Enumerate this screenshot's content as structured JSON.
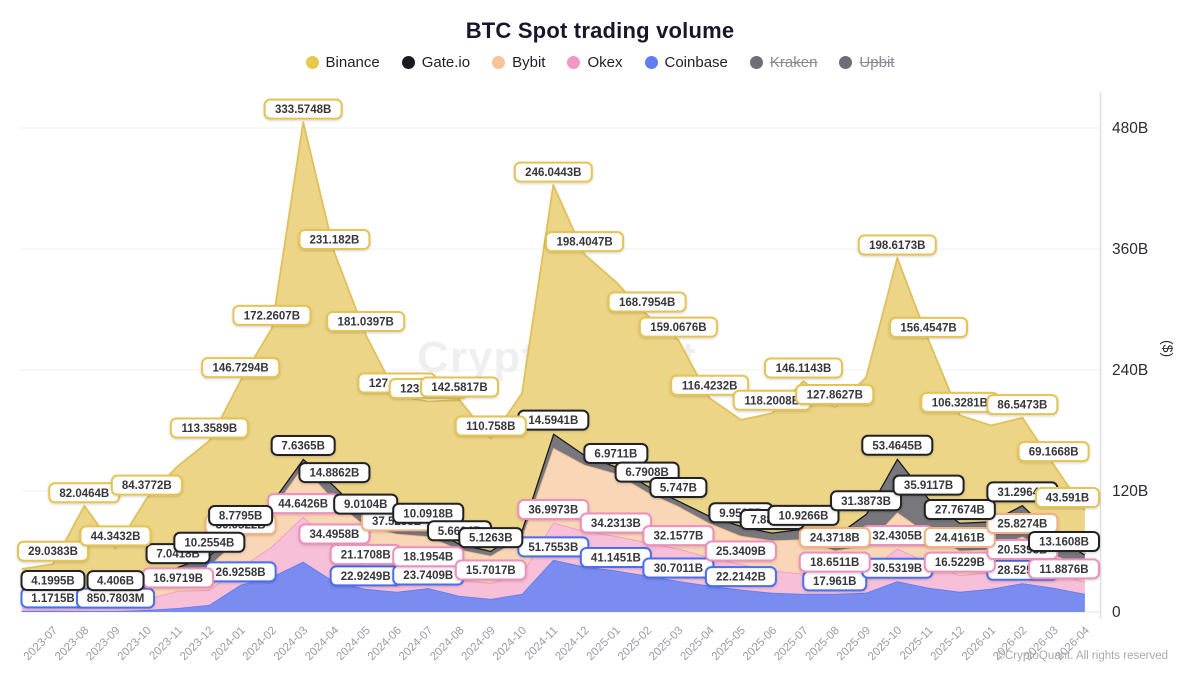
{
  "title": "BTC Spot trading volume",
  "watermark": "CryptoQuant",
  "copyright": "©CryptoQuant. All rights reserved",
  "legend": [
    {
      "label": "Binance",
      "color": "#e6c84d",
      "disabled": false
    },
    {
      "label": "Gate.io",
      "color": "#1a1a1f",
      "disabled": false
    },
    {
      "label": "Bybit",
      "color": "#f6c39b",
      "disabled": false
    },
    {
      "label": "Okex",
      "color": "#f398c3",
      "disabled": false
    },
    {
      "label": "Coinbase",
      "color": "#5f7df2",
      "disabled": false
    },
    {
      "label": "Kraken",
      "color": "#6e6e76",
      "disabled": true
    },
    {
      "label": "Upbit",
      "color": "#6e6e76",
      "disabled": true
    }
  ],
  "y_axis": {
    "unit": "($)",
    "ticks": [
      "0",
      "120B",
      "240B",
      "360B",
      "480B"
    ],
    "tick_values": [
      0,
      120,
      240,
      360,
      480
    ]
  },
  "chart_data": {
    "type": "area",
    "stacked": true,
    "grid": true,
    "legend_position": "top",
    "ylim_billions": [
      0,
      480
    ],
    "x": [
      "2023-07",
      "2023-08",
      "2023-09",
      "2023-10",
      "2023-11",
      "2023-12",
      "2024-01",
      "2024-02",
      "2024-03",
      "2024-04",
      "2024-05",
      "2024-06",
      "2024-07",
      "2024-08",
      "2024-09",
      "2024-10",
      "2024-11",
      "2024-12",
      "2025-01",
      "2025-02",
      "2025-03",
      "2025-04",
      "2025-05",
      "2025-06",
      "2025-07",
      "2025-08",
      "2025-09",
      "2025-10",
      "2025-11",
      "2025-12",
      "2026-01",
      "2026-02",
      "2026-03",
      "2026-04"
    ],
    "series": [
      {
        "name": "Coinbase",
        "fill": "#7a8cf0",
        "line": "#5f7df2",
        "label_border": "#4a6ef0",
        "values_billions": [
          1.1715,
          1.0,
          0.8508,
          2,
          4,
          7,
          26.9258,
          35,
          50,
          30,
          22.9249,
          20,
          23.7409,
          16,
          13,
          18,
          51.7553,
          45,
          41.1451,
          36,
          30.7011,
          26,
          22.2142,
          19,
          18,
          17.961,
          19,
          30.5319,
          24,
          20,
          23,
          28.5252,
          24,
          18
        ],
        "labels": {
          "0": "1.1715B",
          "2": "850.7803M",
          "6": "26.9258B",
          "10": "22.9249B",
          "12": "23.7409B",
          "16": "51.7553B",
          "18": "41.1451B",
          "20": "30.7011B",
          "22": "22.2142B",
          "25": "17.961B",
          "27": "30.5319B",
          "31": "28.5252B"
        }
      },
      {
        "name": "Okex",
        "fill": "#f8c0d8",
        "line": "#f298c4",
        "label_border": "#ee8fbe",
        "values_billions": [
          7,
          10,
          7,
          11,
          16.9719,
          15,
          17,
          30,
          44.6426,
          34.4958,
          21.1708,
          20,
          18.1954,
          16,
          15.7017,
          20,
          36.9973,
          35,
          34.2313,
          33,
          32.1577,
          28,
          25.3409,
          22,
          20,
          18.6511,
          20,
          32.4305,
          25,
          16.5229,
          17,
          20.5398,
          15,
          11.8876
        ],
        "labels": {
          "4": "16.9719B",
          "8": "44.6426B",
          "9": "34.4958B",
          "10": "21.1708B",
          "12": "18.1954B",
          "14": "15.7017B",
          "16": "36.9973B",
          "18": "34.2313B",
          "20": "32.1577B",
          "22": "25.3409B",
          "25": "18.6511B",
          "27": "32.4305B",
          "29": "16.5229B",
          "31": "20.5398B",
          "33": "11.8876B"
        }
      },
      {
        "name": "Bybit",
        "fill": "#f9d6b6",
        "line": "#f2b98c",
        "label_border": "#f0b183",
        "values_billions": [
          6,
          8,
          6,
          10,
          17,
          24,
          30.0522,
          36,
          50,
          46,
          41,
          37.5238,
          33,
          30,
          27,
          36,
          74,
          66,
          62,
          50,
          42,
          34,
          28,
          30,
          34,
          24.3718,
          27,
          36,
          28,
          24.4161,
          22,
          25.8274,
          18,
          14
        ],
        "labels": {
          "6": "30.0522B",
          "11": "37.5238B",
          "25": "24.3718B",
          "29": "24.4161B",
          "31": "25.8274B"
        }
      },
      {
        "name": "Gate.io",
        "fill": "#77777c",
        "line": "#1b1b1f",
        "label_border": "#222226",
        "values_billions": [
          4.1995,
          4.3,
          4.406,
          5.5,
          7.0418,
          10.2554,
          8.7795,
          8,
          7.6365,
          14.8862,
          9.0104,
          9.5,
          10.0918,
          5.6604,
          5.1263,
          8,
          14.5941,
          10,
          6.9711,
          6.7908,
          5.747,
          7.5,
          9.9537,
          7.8872,
          10.9266,
          14,
          31.3873,
          53.4645,
          35.9117,
          27.7674,
          28,
          31.2964,
          20,
          13.1608
        ],
        "labels": {
          "0": "4.1995B",
          "2": "4.406B",
          "4": "7.0418B",
          "5": "10.2554B",
          "6": "8.7795B",
          "8": "7.6365B",
          "9": "14.8862B",
          "10": "9.0104B",
          "12": "10.0918B",
          "13": "5.6604B",
          "14": "5.1263B",
          "16": "14.5941B",
          "18": "6.9711B",
          "19": "6.7908B",
          "20": "5.747B",
          "22": "9.9537B",
          "23": "7.8872B",
          "24": "10.9266B",
          "26": "31.3873B",
          "27": "53.4645B",
          "28": "35.9117B",
          "29": "27.7674B",
          "31": "31.2964B",
          "33": "13.1608B"
        }
      },
      {
        "name": "Binance",
        "fill": "#edd587",
        "line": "#dfc05c",
        "label_border": "#e4c455",
        "values_billions": [
          29.0383,
          82.0464,
          44.3432,
          84.3772,
          100,
          113.3589,
          146.7294,
          172.2607,
          333.5748,
          231.182,
          181.0397,
          127.1417,
          123.7056,
          142.5817,
          110.758,
          135,
          246.0443,
          198.4047,
          183,
          168.7954,
          159.0676,
          116.4232,
          105,
          118.2008,
          146.1143,
          127.8627,
          135,
          198.6173,
          156.4547,
          106.3281,
          95,
          86.5473,
          69.1668,
          43.591
        ],
        "labels": {
          "0": "29.0383B",
          "1": "82.0464B",
          "2": "44.3432B",
          "3": "84.3772B",
          "5": "113.3589B",
          "6": "146.7294B",
          "7": "172.2607B",
          "8": "333.5748B",
          "9": "231.182B",
          "10": "181.0397B",
          "11": "127.1417B",
          "12": "123.7056B",
          "13": "142.5817B",
          "14": "110.758B",
          "16": "246.0443B",
          "17": "198.4047B",
          "19": "168.7954B",
          "20": "159.0676B",
          "21": "116.4232B",
          "23": "118.2008B",
          "24": "146.1143B",
          "25": "127.8627B",
          "27": "198.6173B",
          "28": "156.4547B",
          "29": "106.3281B",
          "31": "86.5473B",
          "32": "69.1668B",
          "33": "43.591B"
        }
      }
    ]
  }
}
